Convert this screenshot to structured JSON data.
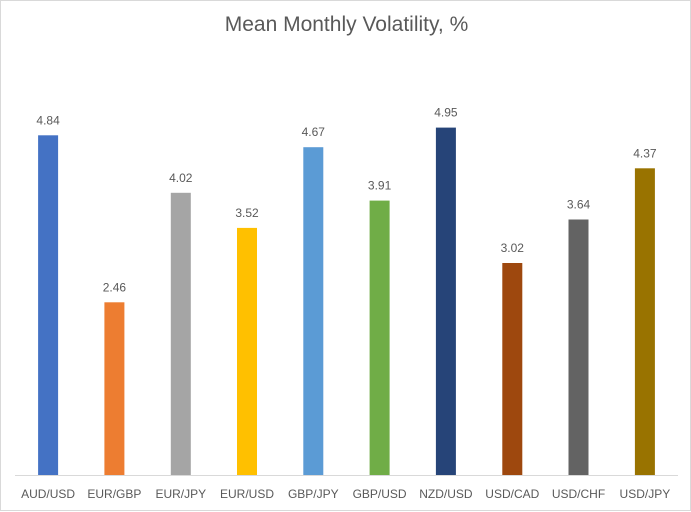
{
  "chart_data": {
    "type": "bar",
    "title": "Mean Monthly Volatility, %",
    "xlabel": "",
    "ylabel": "",
    "categories": [
      "AUD/USD",
      "EUR/GBP",
      "EUR/JPY",
      "EUR/USD",
      "GBP/JPY",
      "GBP/USD",
      "NZD/USD",
      "USD/CAD",
      "USD/CHF",
      "USD/JPY"
    ],
    "values": [
      4.84,
      2.46,
      4.02,
      3.52,
      4.67,
      3.91,
      4.95,
      3.02,
      3.64,
      4.37
    ],
    "value_labels": [
      "4.84",
      "2.46",
      "4.02",
      "3.52",
      "4.67",
      "3.91",
      "4.95",
      "3.02",
      "3.64",
      "4.37"
    ],
    "colors": [
      "#4472c4",
      "#ed7d31",
      "#a5a5a5",
      "#ffc000",
      "#5b9bd5",
      "#70ad47",
      "#264478",
      "#9e480e",
      "#636363",
      "#997300"
    ],
    "ylim": [
      0,
      5.3
    ],
    "grid": false,
    "legend": "none"
  }
}
